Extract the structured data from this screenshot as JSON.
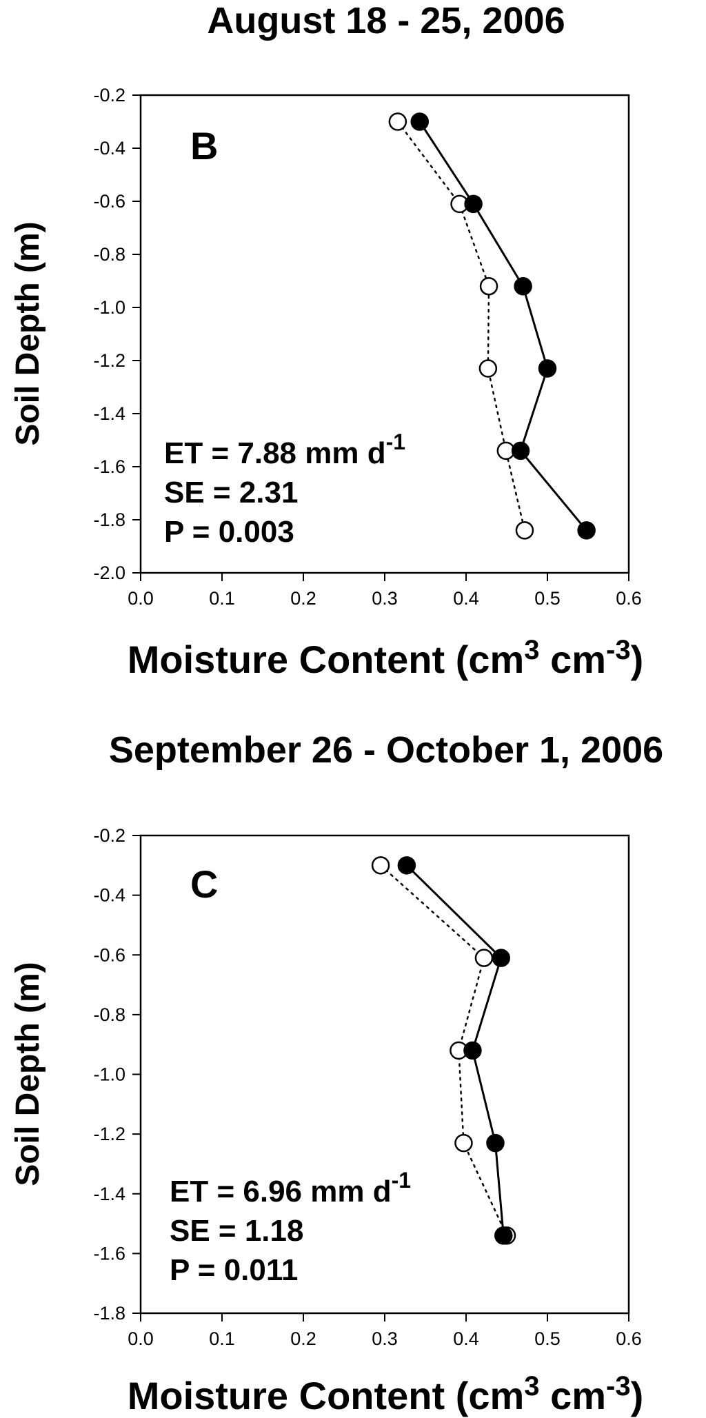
{
  "chart_data": [
    {
      "type": "line",
      "title": "August 18 - 25, 2006",
      "panel_label": "B",
      "xlabel": "Moisture Content (cm",
      "xlabel_sup1": "3",
      "xlabel_mid": " cm",
      "xlabel_sup2": "-3",
      "xlabel_end": ")",
      "ylabel": "Soil Depth (m)",
      "xlim": [
        0.0,
        0.6
      ],
      "ylim": [
        -2.0,
        -0.2
      ],
      "x_ticks": [
        "0.0",
        "0.1",
        "0.2",
        "0.3",
        "0.4",
        "0.5",
        "0.6"
      ],
      "y_ticks": [
        "-0.2",
        "-0.4",
        "-0.6",
        "-0.8",
        "-1.0",
        "-1.2",
        "-1.4",
        "-1.6",
        "-1.8",
        "-2.0"
      ],
      "stats": {
        "et": "ET = 7.88 mm d",
        "et_sup": "-1",
        "se": "SE = 2.31",
        "p": "P = 0.003"
      },
      "series": [
        {
          "marker": "filled",
          "line": "solid",
          "points": [
            [
              0.343,
              -0.3
            ],
            [
              0.409,
              -0.61
            ],
            [
              0.47,
              -0.92
            ],
            [
              0.5,
              -1.23
            ],
            [
              0.467,
              -1.54
            ],
            [
              0.548,
              -1.84
            ]
          ]
        },
        {
          "marker": "open",
          "line": "dotted",
          "points": [
            [
              0.316,
              -0.3
            ],
            [
              0.392,
              -0.61
            ],
            [
              0.428,
              -0.92
            ],
            [
              0.427,
              -1.23
            ],
            [
              0.449,
              -1.54
            ],
            [
              0.472,
              -1.84
            ]
          ]
        }
      ]
    },
    {
      "type": "line",
      "title": "September 26 - October 1, 2006",
      "panel_label": "C",
      "xlabel": "Moisture Content (cm",
      "xlabel_sup1": "3",
      "xlabel_mid": " cm",
      "xlabel_sup2": "-3",
      "xlabel_end": ")",
      "ylabel": "Soil Depth (m)",
      "xlim": [
        0.0,
        0.6
      ],
      "ylim": [
        -1.8,
        -0.2
      ],
      "x_ticks": [
        "0.0",
        "0.1",
        "0.2",
        "0.3",
        "0.4",
        "0.5",
        "0.6"
      ],
      "y_ticks": [
        "-0.2",
        "-0.4",
        "-0.6",
        "-0.8",
        "-1.0",
        "-1.2",
        "-1.4",
        "-1.6",
        "-1.8"
      ],
      "stats": {
        "et": "ET = 6.96 mm d",
        "et_sup": "-1",
        "se": "SE = 1.18",
        "p": "P = 0.011"
      },
      "series": [
        {
          "marker": "filled",
          "line": "solid",
          "points": [
            [
              0.327,
              -0.3
            ],
            [
              0.443,
              -0.61
            ],
            [
              0.408,
              -0.92
            ],
            [
              0.436,
              -1.23
            ],
            [
              0.446,
              -1.54
            ]
          ]
        },
        {
          "marker": "open",
          "line": "dotted",
          "points": [
            [
              0.295,
              -0.3
            ],
            [
              0.422,
              -0.61
            ],
            [
              0.391,
              -0.92
            ],
            [
              0.397,
              -1.23
            ],
            [
              0.45,
              -1.54
            ]
          ]
        }
      ]
    }
  ]
}
